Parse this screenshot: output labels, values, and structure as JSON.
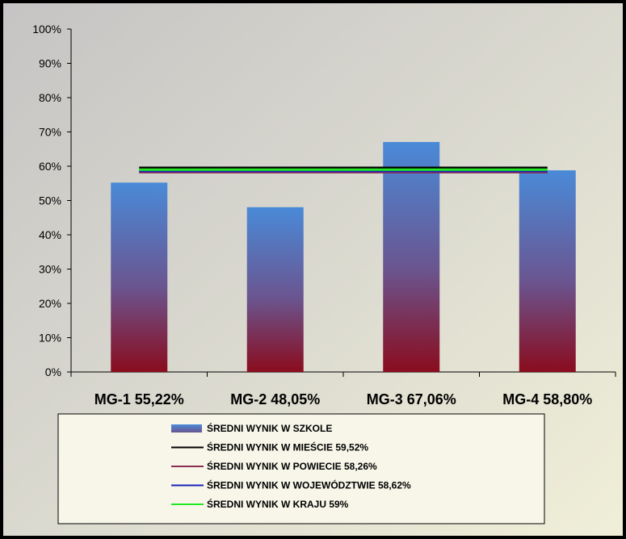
{
  "chart_data": {
    "type": "bar",
    "categories": [
      "MG-1 55,22%",
      "MG-2 48,05%",
      "MG-3 67,06%",
      "MG-4 58,80%"
    ],
    "values": [
      55.22,
      48.05,
      67.06,
      58.8
    ],
    "ylim": [
      0,
      100
    ],
    "y_ticks": [
      "0%",
      "10%",
      "20%",
      "30%",
      "40%",
      "50%",
      "60%",
      "70%",
      "80%",
      "90%",
      "100%"
    ],
    "bar_series": {
      "label": "ŚREDNI WYNIK W SZKOLE",
      "color_top": "#4a8ad8",
      "color_mid": "#6a5590",
      "color_bottom": "#8a0c1e"
    },
    "line_series": [
      {
        "label": "ŚREDNI WYNIK W MIEŚCIE 59,52%",
        "value": 59.52,
        "color": "#000000"
      },
      {
        "label": "ŚREDNI WYNIK W POWIECIE 58,26%",
        "value": 58.26,
        "color": "#8b2e52"
      },
      {
        "label": "ŚREDNI WYNIK W WOJEWÓDZTWIE 58,62%",
        "value": 58.62,
        "color": "#1a22b8"
      },
      {
        "label": "ŚREDNI WYNIK W KRAJU 59%",
        "value": 59.0,
        "color": "#22e822"
      }
    ],
    "grid": false,
    "legend_position": "bottom"
  }
}
